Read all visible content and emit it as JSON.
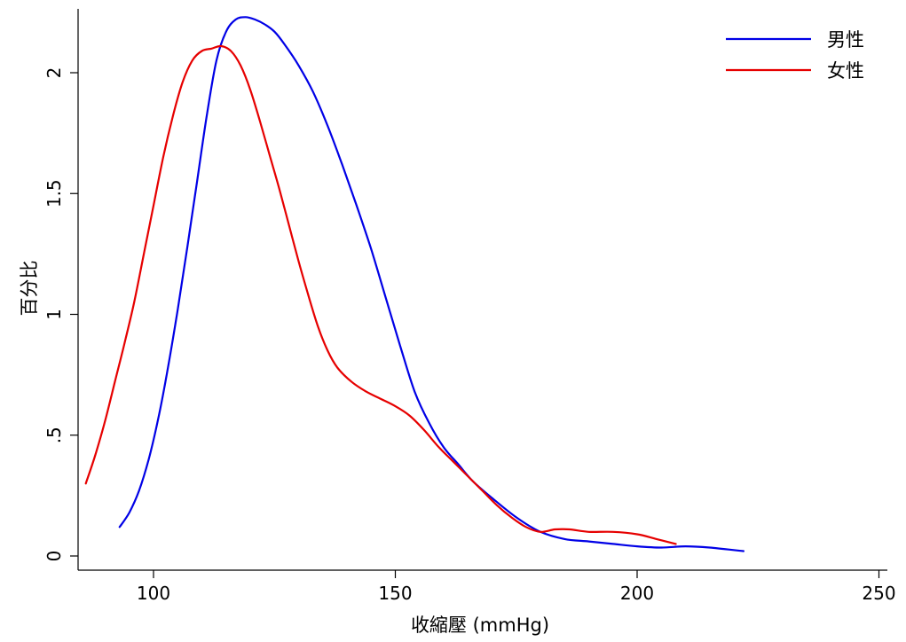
{
  "chart_data": {
    "type": "line",
    "title": "",
    "xlabel": "收縮壓 (mmHg)",
    "ylabel": "百分比",
    "xlim": [
      86,
      252
    ],
    "ylim": [
      -0.05,
      2.27
    ],
    "xticks": [
      100,
      150,
      200,
      250
    ],
    "yticks": [
      0,
      0.5,
      1,
      1.5,
      2
    ],
    "xtick_labels": [
      "100",
      "150",
      "200",
      "250"
    ],
    "ytick_labels": [
      "0",
      ".5",
      "1",
      "1.5",
      "2"
    ],
    "grid": false,
    "legend_position": "top-right",
    "series": [
      {
        "name": "男性",
        "color": "#0000e6",
        "x": [
          93,
          95,
          97,
          99,
          101,
          103,
          105,
          107,
          109,
          111,
          113,
          115,
          117,
          119,
          121,
          123,
          125,
          127,
          130,
          133,
          136,
          139,
          142,
          145,
          148,
          151,
          154,
          157,
          160,
          163,
          166,
          170,
          175,
          180,
          185,
          190,
          195,
          200,
          205,
          210,
          215,
          222
        ],
        "y": [
          0.12,
          0.18,
          0.27,
          0.4,
          0.57,
          0.78,
          1.02,
          1.28,
          1.55,
          1.82,
          2.05,
          2.17,
          2.22,
          2.23,
          2.22,
          2.2,
          2.17,
          2.12,
          2.03,
          1.92,
          1.78,
          1.62,
          1.45,
          1.27,
          1.07,
          0.87,
          0.68,
          0.55,
          0.45,
          0.38,
          0.31,
          0.24,
          0.16,
          0.1,
          0.07,
          0.06,
          0.05,
          0.04,
          0.035,
          0.04,
          0.035,
          0.02
        ]
      },
      {
        "name": "女性",
        "color": "#e60000",
        "x": [
          86,
          88,
          90,
          92,
          94,
          96,
          98,
          100,
          102,
          104,
          106,
          108,
          110,
          112,
          114,
          116,
          118,
          120,
          122,
          124,
          126,
          128,
          130,
          132,
          134,
          136,
          138,
          141,
          144,
          147,
          150,
          153,
          156,
          159,
          162,
          165,
          168,
          171,
          174,
          177,
          180,
          183,
          186,
          190,
          195,
          200,
          204,
          208
        ],
        "y": [
          0.3,
          0.42,
          0.56,
          0.72,
          0.88,
          1.05,
          1.25,
          1.45,
          1.65,
          1.82,
          1.96,
          2.05,
          2.09,
          2.1,
          2.11,
          2.09,
          2.03,
          1.93,
          1.8,
          1.66,
          1.52,
          1.37,
          1.22,
          1.08,
          0.95,
          0.85,
          0.78,
          0.72,
          0.68,
          0.65,
          0.62,
          0.58,
          0.52,
          0.45,
          0.39,
          0.33,
          0.27,
          0.21,
          0.16,
          0.12,
          0.1,
          0.11,
          0.11,
          0.1,
          0.1,
          0.09,
          0.07,
          0.05
        ]
      }
    ]
  }
}
